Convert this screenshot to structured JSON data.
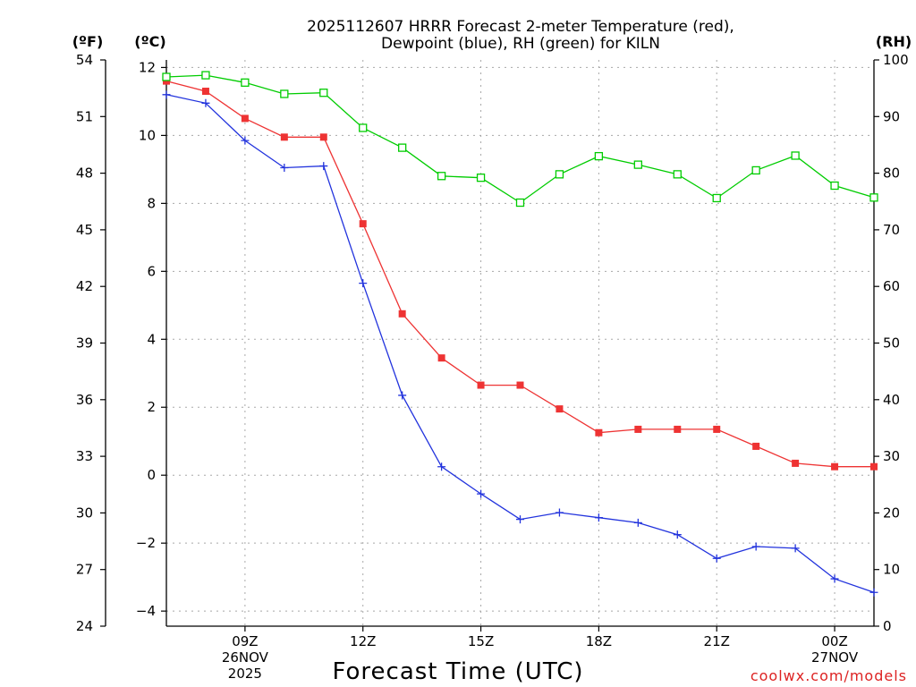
{
  "chart_data": {
    "type": "line",
    "title": "2025112607 HRRR Forecast 2-meter Temperature (red),",
    "subtitle": "Dewpoint (blue), RH (green) for KILN",
    "xlabel": "Forecast Time (UTC)",
    "credit": "coolwx.com/models",
    "axes": {
      "left_outer": {
        "unit": "(ºF)",
        "ticks": [
          "54",
          "51",
          "48",
          "45",
          "42",
          "39",
          "36",
          "33",
          "30",
          "27",
          "24"
        ],
        "range": [
          24,
          54
        ]
      },
      "left_inner": {
        "unit": "(ºC)",
        "ticks": [
          "12",
          "10",
          "8",
          "6",
          "4",
          "2",
          "0",
          "−2",
          "−4"
        ],
        "range": [
          -4.444,
          12.222
        ]
      },
      "right": {
        "unit": "(RH)",
        "ticks": [
          "100",
          "90",
          "80",
          "70",
          "60",
          "50",
          "40",
          "30",
          "20",
          "10",
          "0"
        ],
        "range": [
          0,
          100
        ]
      }
    },
    "x_hours_utc": [
      7,
      8,
      9,
      10,
      11,
      12,
      13,
      14,
      15,
      16,
      17,
      18,
      19,
      20,
      21,
      22,
      23,
      24,
      25
    ],
    "x_range": [
      7,
      25
    ],
    "x_ticks": [
      {
        "hour": 9,
        "lines": [
          "09Z",
          "26NOV",
          "2025"
        ]
      },
      {
        "hour": 12,
        "lines": [
          "12Z"
        ]
      },
      {
        "hour": 15,
        "lines": [
          "15Z"
        ]
      },
      {
        "hour": 18,
        "lines": [
          "18Z"
        ]
      },
      {
        "hour": 21,
        "lines": [
          "21Z"
        ]
      },
      {
        "hour": 24,
        "lines": [
          "00Z",
          "27NOV"
        ]
      }
    ],
    "series": [
      {
        "name": "2-meter Temperature",
        "unit": "°C",
        "axis": "left_inner",
        "color": "#ee3333",
        "marker": "filled-square",
        "values": [
          11.6,
          11.3,
          10.5,
          9.95,
          9.95,
          7.4,
          4.75,
          3.45,
          2.65,
          2.65,
          1.95,
          1.25,
          1.35,
          1.35,
          1.35,
          0.85,
          0.35,
          0.25,
          0.25
        ]
      },
      {
        "name": "Dewpoint",
        "unit": "°C",
        "axis": "left_inner",
        "color": "#2233dd",
        "marker": "plus",
        "values": [
          11.2,
          10.95,
          9.85,
          9.05,
          9.1,
          5.65,
          2.35,
          0.25,
          -0.55,
          -1.3,
          -1.1,
          -1.25,
          -1.4,
          -1.75,
          -2.45,
          -2.1,
          -2.15,
          -3.05,
          -3.45
        ]
      },
      {
        "name": "Relative Humidity",
        "unit": "%",
        "axis": "right",
        "color": "#00cc00",
        "marker": "open-square",
        "values": [
          97,
          97.3,
          96,
          94,
          94.2,
          88,
          84.5,
          79.5,
          79.2,
          74.8,
          79.8,
          83,
          81.5,
          79.8,
          75.6,
          80.5,
          83.1,
          77.8,
          75.7
        ]
      }
    ]
  }
}
